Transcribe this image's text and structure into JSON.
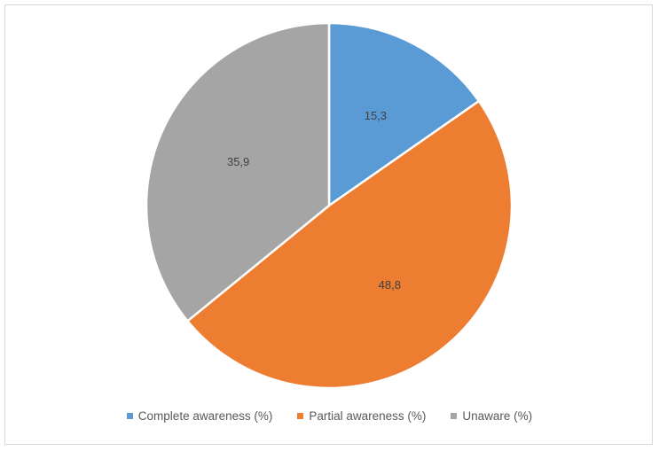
{
  "chart_data": {
    "type": "pie",
    "title": "",
    "categories": [
      "Complete awareness (%)",
      "Partial awareness (%)",
      "Unaware (%)"
    ],
    "values": [
      15.3,
      48.8,
      35.9
    ],
    "data_labels": [
      "15,3",
      "48,8",
      "35,9"
    ],
    "colors": [
      "#5b9bd5",
      "#ed7d31",
      "#a5a5a5"
    ],
    "start_angle": "12 o'clock, clockwise",
    "legend_position": "bottom"
  },
  "legend": {
    "items": [
      {
        "label": "Complete awareness (%)",
        "color": "#5b9bd5"
      },
      {
        "label": "Partial awareness (%)",
        "color": "#ed7d31"
      },
      {
        "label": "Unaware (%)",
        "color": "#a5a5a5"
      }
    ]
  }
}
